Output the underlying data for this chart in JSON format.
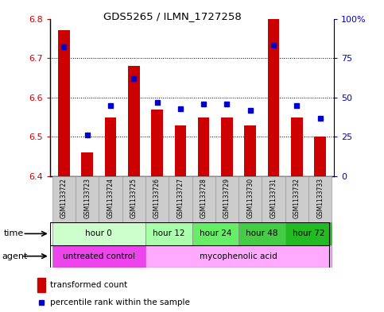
{
  "title": "GDS5265 / ILMN_1727258",
  "samples": [
    "GSM1133722",
    "GSM1133723",
    "GSM1133724",
    "GSM1133725",
    "GSM1133726",
    "GSM1133727",
    "GSM1133728",
    "GSM1133729",
    "GSM1133730",
    "GSM1133731",
    "GSM1133732",
    "GSM1133733"
  ],
  "transformed_counts": [
    6.77,
    6.46,
    6.55,
    6.68,
    6.57,
    6.53,
    6.55,
    6.55,
    6.53,
    6.8,
    6.55,
    6.5
  ],
  "percentile_ranks": [
    82,
    26,
    45,
    62,
    47,
    43,
    46,
    46,
    42,
    83,
    45,
    37
  ],
  "ylim_left": [
    6.4,
    6.8
  ],
  "ylim_right": [
    0,
    100
  ],
  "yticks_left": [
    6.4,
    6.5,
    6.6,
    6.7,
    6.8
  ],
  "yticks_right": [
    0,
    25,
    50,
    75,
    100
  ],
  "ytick_labels_right": [
    "0",
    "25",
    "50",
    "75",
    "100%"
  ],
  "bar_color": "#cc0000",
  "dot_color": "#0000cc",
  "bar_baseline": 6.4,
  "time_groups": [
    {
      "label": "hour 0",
      "indices": [
        0,
        1,
        2,
        3
      ],
      "color": "#ccffcc"
    },
    {
      "label": "hour 12",
      "indices": [
        4,
        5
      ],
      "color": "#aaffaa"
    },
    {
      "label": "hour 24",
      "indices": [
        6,
        7
      ],
      "color": "#66ee66"
    },
    {
      "label": "hour 48",
      "indices": [
        8,
        9
      ],
      "color": "#44cc44"
    },
    {
      "label": "hour 72",
      "indices": [
        10,
        11
      ],
      "color": "#22bb22"
    }
  ],
  "agent_groups": [
    {
      "label": "untreated control",
      "indices": [
        0,
        1,
        2,
        3
      ],
      "color": "#ee44ee"
    },
    {
      "label": "mycophenolic acid",
      "indices": [
        4,
        5,
        6,
        7,
        8,
        9,
        10,
        11
      ],
      "color": "#ffaaff"
    }
  ],
  "legend_bar_label": "transformed count",
  "legend_dot_label": "percentile rank within the sample",
  "xlabel_time": "time",
  "xlabel_agent": "agent",
  "sample_bg_color": "#cccccc",
  "left_tick_color": "#cc0000",
  "right_tick_color": "#0000cc"
}
